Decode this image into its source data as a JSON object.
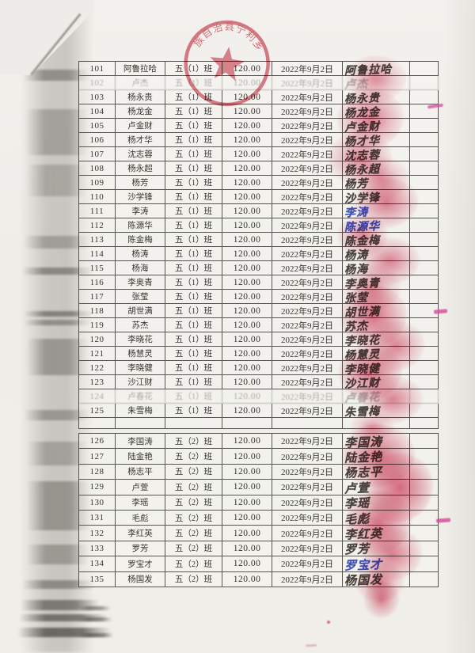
{
  "document": {
    "stamp": {
      "arc_text": "族自治县宁利乡中心",
      "color": "#cf4a5a"
    },
    "fingerprint_color": "#d43e5e",
    "blue_ink_color": "#4150b8",
    "amount_all_rows": "120.00",
    "date_all_rows": "2022年9月2日"
  },
  "table": {
    "sections": [
      {
        "name": "class-5-1",
        "rows": [
          {
            "no": "101",
            "name": "阿鲁拉哈",
            "class": "五（1）班",
            "amount": "120.00",
            "date": "2022年9月2日",
            "signature": "阿鲁拉哈",
            "ink": "dark",
            "faded": false
          },
          {
            "no": "102",
            "name": "卢杰",
            "class": "五（1）班",
            "amount": "120.00",
            "date": "2022年9月2日",
            "signature": "卢杰",
            "ink": "dark",
            "faded": true
          },
          {
            "no": "103",
            "name": "杨永贵",
            "class": "五（1）班",
            "amount": "120.00",
            "date": "2022年9月2日",
            "signature": "杨永贵",
            "ink": "dark",
            "faded": false
          },
          {
            "no": "104",
            "name": "杨龙金",
            "class": "五（1）班",
            "amount": "120.00",
            "date": "2022年9月2日",
            "signature": "杨龙金",
            "ink": "dark",
            "faded": false
          },
          {
            "no": "105",
            "name": "卢金财",
            "class": "五（1）班",
            "amount": "120.00",
            "date": "2022年9月2日",
            "signature": "卢金财",
            "ink": "dark",
            "faded": false
          },
          {
            "no": "106",
            "name": "杨才华",
            "class": "五（1）班",
            "amount": "120.00",
            "date": "2022年9月2日",
            "signature": "杨才华",
            "ink": "dark",
            "faded": false
          },
          {
            "no": "107",
            "name": "沈志蓉",
            "class": "五（1）班",
            "amount": "120.00",
            "date": "2022年9月2日",
            "signature": "沈志蓉",
            "ink": "dark",
            "faded": false
          },
          {
            "no": "108",
            "name": "杨永超",
            "class": "五（1）班",
            "amount": "120.00",
            "date": "2022年9月2日",
            "signature": "杨永超",
            "ink": "dark",
            "faded": false
          },
          {
            "no": "109",
            "name": "杨芳",
            "class": "五（1）班",
            "amount": "120.00",
            "date": "2022年9月2日",
            "signature": "杨芳",
            "ink": "dark",
            "faded": false
          },
          {
            "no": "110",
            "name": "沙学锋",
            "class": "五（1）班",
            "amount": "120.00",
            "date": "2022年9月2日",
            "signature": "沙学锋",
            "ink": "dark",
            "faded": false
          },
          {
            "no": "111",
            "name": "李涛",
            "class": "五（1）班",
            "amount": "120.00",
            "date": "2022年9月2日",
            "signature": "李涛",
            "ink": "blue",
            "faded": false
          },
          {
            "no": "112",
            "name": "陈源华",
            "class": "五（1）班",
            "amount": "120.00",
            "date": "2022年9月2日",
            "signature": "陈源华",
            "ink": "blue",
            "faded": false
          },
          {
            "no": "113",
            "name": "陈金梅",
            "class": "五（1）班",
            "amount": "120.00",
            "date": "2022年9月2日",
            "signature": "陈金梅",
            "ink": "dark",
            "faded": false
          },
          {
            "no": "114",
            "name": "杨涛",
            "class": "五（1）班",
            "amount": "120.00",
            "date": "2022年9月2日",
            "signature": "杨涛",
            "ink": "dark",
            "faded": false
          },
          {
            "no": "115",
            "name": "杨海",
            "class": "五（1）班",
            "amount": "120.00",
            "date": "2022年9月2日",
            "signature": "杨海",
            "ink": "dark",
            "faded": false
          },
          {
            "no": "116",
            "name": "李奥青",
            "class": "五（1）班",
            "amount": "120.00",
            "date": "2022年9月2日",
            "signature": "李奥青",
            "ink": "dark",
            "faded": false
          },
          {
            "no": "117",
            "name": "张莹",
            "class": "五（1）班",
            "amount": "120.00",
            "date": "2022年9月2日",
            "signature": "张莹",
            "ink": "dark",
            "faded": false
          },
          {
            "no": "118",
            "name": "胡世满",
            "class": "五（1）班",
            "amount": "120.00",
            "date": "2022年9月2日",
            "signature": "胡世满",
            "ink": "dark",
            "faded": false
          },
          {
            "no": "119",
            "name": "苏杰",
            "class": "五（1）班",
            "amount": "120.00",
            "date": "2022年9月2日",
            "signature": "苏杰",
            "ink": "dark",
            "faded": false
          },
          {
            "no": "120",
            "name": "李晓花",
            "class": "五（1）班",
            "amount": "120.00",
            "date": "2022年9月2日",
            "signature": "李晓花",
            "ink": "dark",
            "faded": false
          },
          {
            "no": "121",
            "name": "杨慧灵",
            "class": "五（1）班",
            "amount": "120.00",
            "date": "2022年9月2日",
            "signature": "杨慧灵",
            "ink": "dark",
            "faded": false
          },
          {
            "no": "122",
            "name": "李晓健",
            "class": "五（1）班",
            "amount": "120.00",
            "date": "2022年9月2日",
            "signature": "李晓健",
            "ink": "dark",
            "faded": false
          },
          {
            "no": "123",
            "name": "沙江财",
            "class": "五（1）班",
            "amount": "120.00",
            "date": "2022年9月2日",
            "signature": "沙江财",
            "ink": "dark",
            "faded": false
          },
          {
            "no": "124",
            "name": "卢春花",
            "class": "五（1）班",
            "amount": "120.00",
            "date": "2022年9月2日",
            "signature": "卢春花",
            "ink": "dark",
            "faded": true
          },
          {
            "no": "125",
            "name": "朱雪梅",
            "class": "五（1）班",
            "amount": "120.00",
            "date": "2022年9月2日",
            "signature": "朱雪梅",
            "ink": "dark",
            "faded": false
          }
        ]
      },
      {
        "name": "class-5-2",
        "rows": [
          {
            "no": "126",
            "name": "李国涛",
            "class": "五（2）班",
            "amount": "120.00",
            "date": "2022年9月2日",
            "signature": "李国涛",
            "ink": "dark",
            "faded": false
          },
          {
            "no": "127",
            "name": "陆金艳",
            "class": "五（2）班",
            "amount": "120.00",
            "date": "2022年9月2日",
            "signature": "陆金艳",
            "ink": "dark",
            "faded": false
          },
          {
            "no": "128",
            "name": "杨志平",
            "class": "五（2）班",
            "amount": "120.00",
            "date": "2022年9月2日",
            "signature": "杨志平",
            "ink": "dark",
            "faded": false
          },
          {
            "no": "129",
            "name": "卢萱",
            "class": "五（2）班",
            "amount": "120.00",
            "date": "2022年9月2日",
            "signature": "卢萱",
            "ink": "dark",
            "faded": false
          },
          {
            "no": "130",
            "name": "李瑶",
            "class": "五（2）班",
            "amount": "120.00",
            "date": "2022年9月2日",
            "signature": "李瑶",
            "ink": "dark",
            "faded": false
          },
          {
            "no": "131",
            "name": "毛彪",
            "class": "五（2）班",
            "amount": "120.00",
            "date": "2022年9月2日",
            "signature": "毛彪",
            "ink": "dark",
            "faded": false
          },
          {
            "no": "132",
            "name": "李红英",
            "class": "五（2）班",
            "amount": "120.00",
            "date": "2022年9月2日",
            "signature": "李红英",
            "ink": "dark",
            "faded": false
          },
          {
            "no": "133",
            "name": "罗芳",
            "class": "五（2）班",
            "amount": "120.00",
            "date": "2022年9月2日",
            "signature": "罗芳",
            "ink": "dark",
            "faded": false
          },
          {
            "no": "134",
            "name": "罗宝才",
            "class": "五（2）班",
            "amount": "120.00",
            "date": "2022年9月2日",
            "signature": "罗宝才",
            "ink": "blue",
            "faded": false
          },
          {
            "no": "135",
            "name": "杨国发",
            "class": "五（2）班",
            "amount": "120.00",
            "date": "2022年9月2日",
            "signature": "杨国发",
            "ink": "dark",
            "faded": false
          }
        ]
      }
    ]
  }
}
